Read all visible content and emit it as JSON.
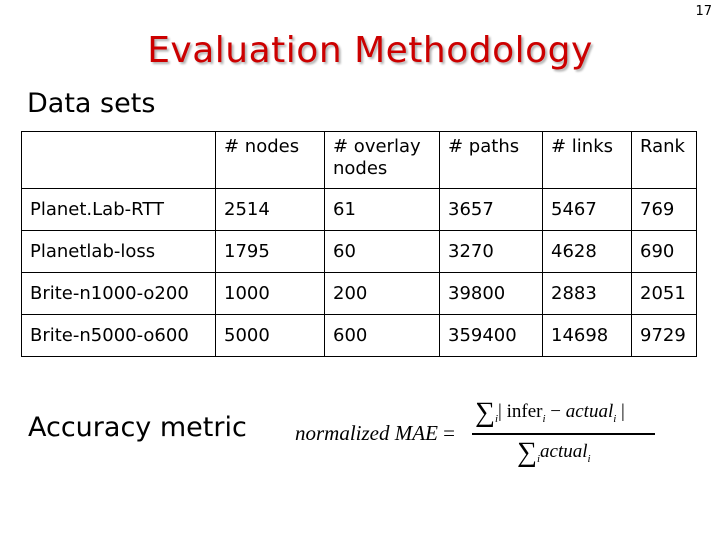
{
  "slide_number": "17",
  "title": "Evaluation Methodology",
  "datasets_heading": "Data sets",
  "table": {
    "headers": [
      "",
      "# nodes",
      "# overlay nodes",
      "# paths",
      "# links",
      "Rank"
    ],
    "rows": [
      [
        "Planet.Lab-RTT",
        "2514",
        "61",
        "3657",
        "5467",
        "769"
      ],
      [
        "Planetlab-loss",
        "1795",
        "60",
        "3270",
        "4628",
        "690"
      ],
      [
        "Brite-n1000-o200",
        "1000",
        "200",
        "39800",
        "2883",
        "2051"
      ],
      [
        "Brite-n5000-o600",
        "5000",
        "600",
        "359400",
        "14698",
        "9729"
      ]
    ]
  },
  "accuracy_heading": "Accuracy metric",
  "formula": {
    "lhs": "normalized MAE",
    "equals": "=",
    "sum_symbol": "∑",
    "sub_i": "i",
    "abs_open": "| infer",
    "minus": " − ",
    "actual": "actual",
    "abs_close": " |",
    "den_actual": "actual"
  }
}
